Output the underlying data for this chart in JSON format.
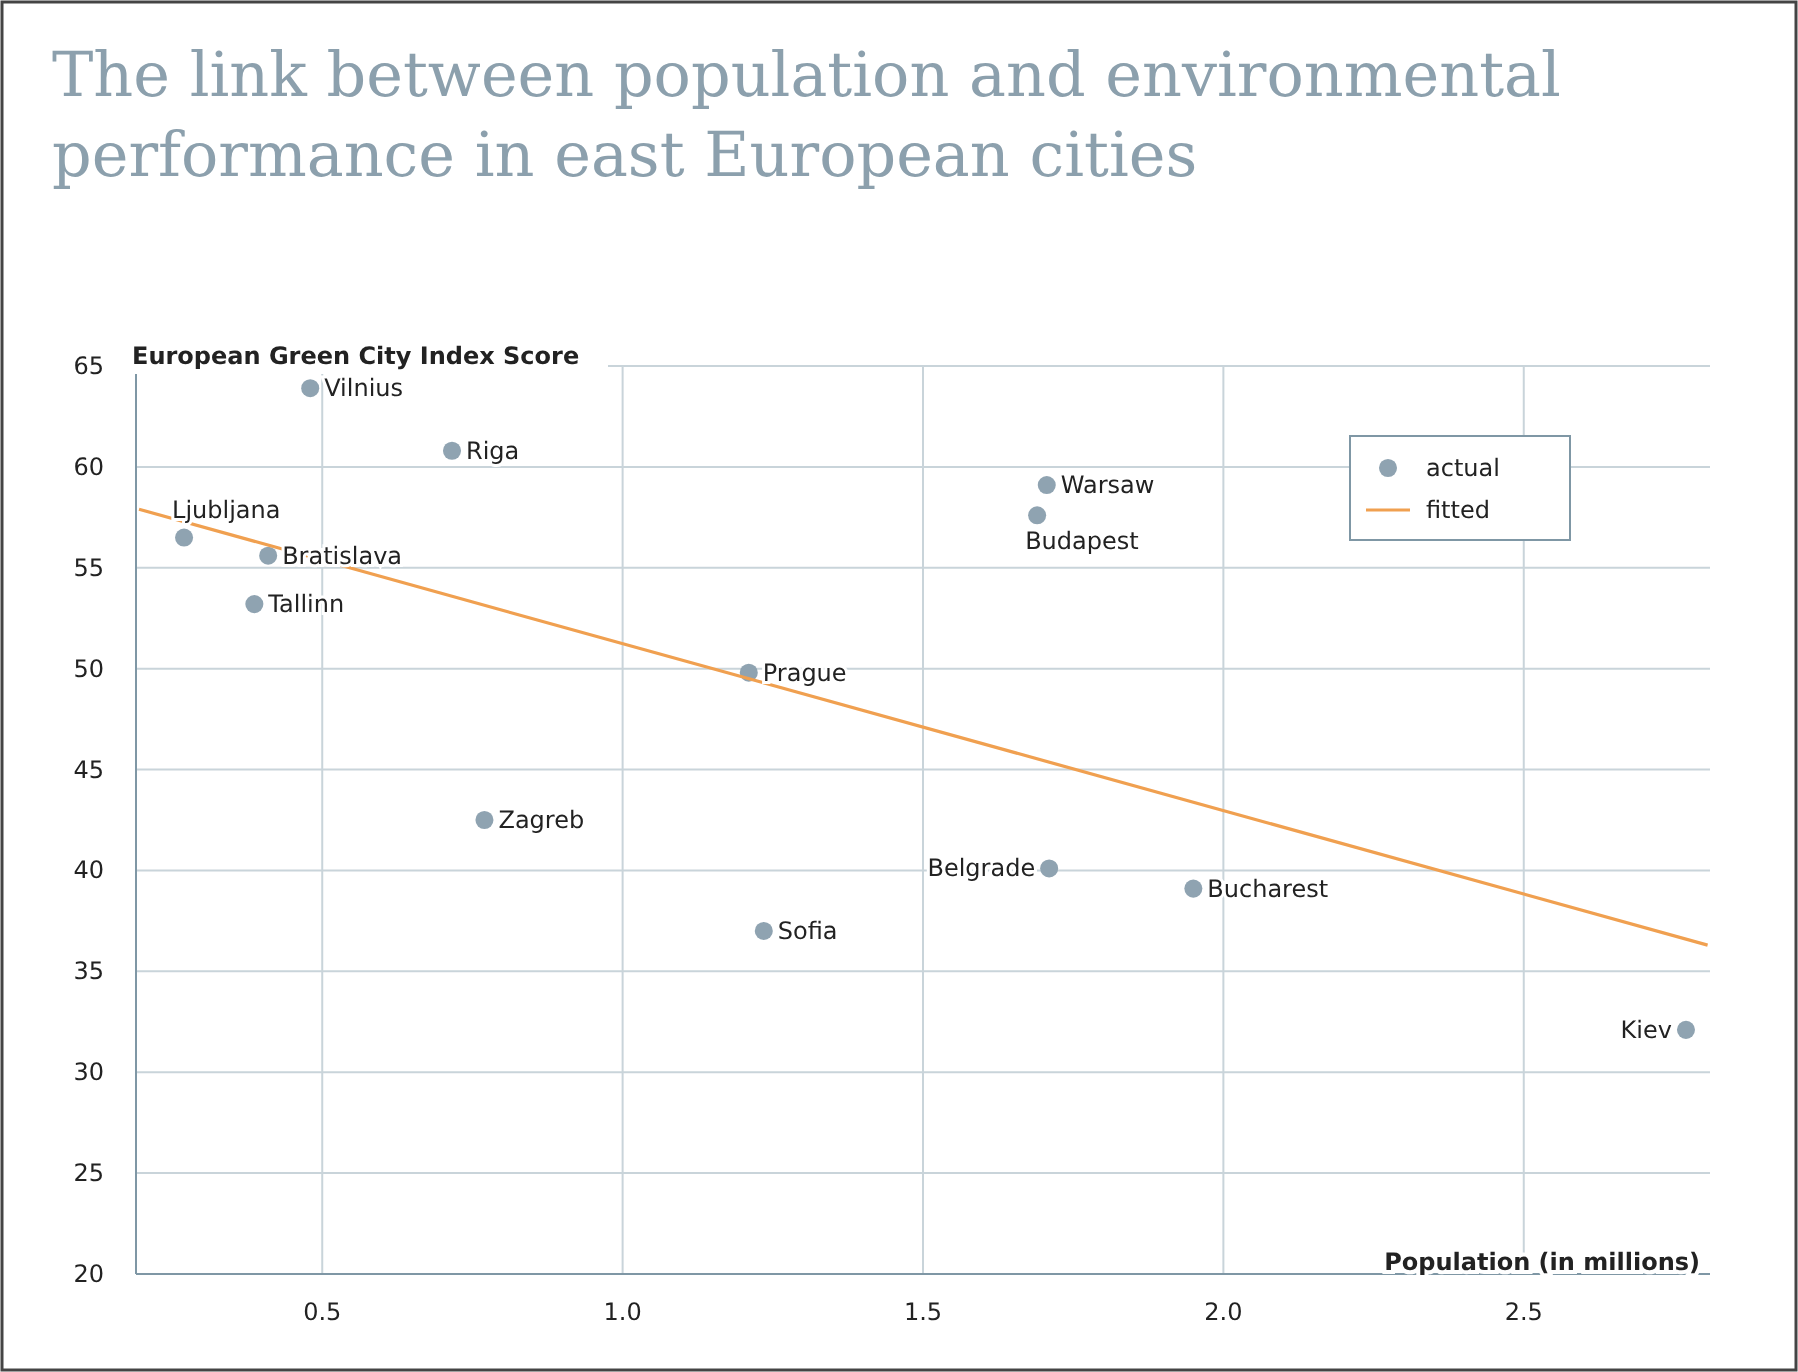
{
  "chart_data": {
    "type": "scatter",
    "title": "The link between population and environmental performance in east European cities",
    "xlabel": "Population (in millions)",
    "ylabel": "European Green City Index Score",
    "xlim": [
      0.19,
      2.81
    ],
    "ylim": [
      20,
      65
    ],
    "xticks": [
      0.5,
      {
        "value": 1,
        "label": "1.0"
      },
      1.5,
      {
        "value": 2,
        "label": "2.0"
      },
      2.5
    ],
    "yticks": [
      20,
      25,
      30,
      35,
      40,
      45,
      50,
      55,
      60,
      65
    ],
    "grid": true,
    "legend": "top right",
    "series": [
      {
        "name": "actual",
        "marker": "circle",
        "color": "#8fa3b1",
        "x": [
          0.48,
          0.716,
          0.27,
          0.41,
          0.387,
          1.706,
          1.69,
          1.21,
          0.77,
          1.71,
          1.95,
          1.235,
          2.77
        ],
        "values": [
          63.9,
          60.8,
          56.5,
          55.6,
          53.2,
          59.1,
          57.6,
          49.8,
          42.5,
          40.1,
          39.1,
          37.0,
          32.1
        ]
      },
      {
        "name": "fitted",
        "type": "line",
        "color": "#f0a050",
        "x": [
          0.195,
          2.806
        ],
        "values": [
          57.9,
          36.3
        ],
        "line_style": "solid"
      }
    ],
    "annotations": [
      {
        "text": "Vilnius",
        "x": 0.48,
        "y": 63.9
      },
      {
        "text": "Riga",
        "x": 0.716,
        "y": 60.8
      },
      {
        "text": "Ljubljana",
        "x": 0.27,
        "y": 56.5
      },
      {
        "text": "Bratislava",
        "x": 0.41,
        "y": 55.6
      },
      {
        "text": "Tallinn",
        "x": 0.387,
        "y": 53.2
      },
      {
        "text": "Warsaw",
        "x": 1.706,
        "y": 59.1
      },
      {
        "text": "Budapest",
        "x": 1.69,
        "y": 57.6
      },
      {
        "text": "Prague",
        "x": 1.21,
        "y": 49.8
      },
      {
        "text": "Zagreb",
        "x": 0.77,
        "y": 42.5
      },
      {
        "text": "Belgrade",
        "x": 1.71,
        "y": 40.1
      },
      {
        "text": "Bucharest",
        "x": 1.95,
        "y": 39.1
      },
      {
        "text": "Sofia",
        "x": 1.235,
        "y": 37.0
      },
      {
        "text": "Kiev",
        "x": 2.77,
        "y": 32.1
      }
    ]
  }
}
